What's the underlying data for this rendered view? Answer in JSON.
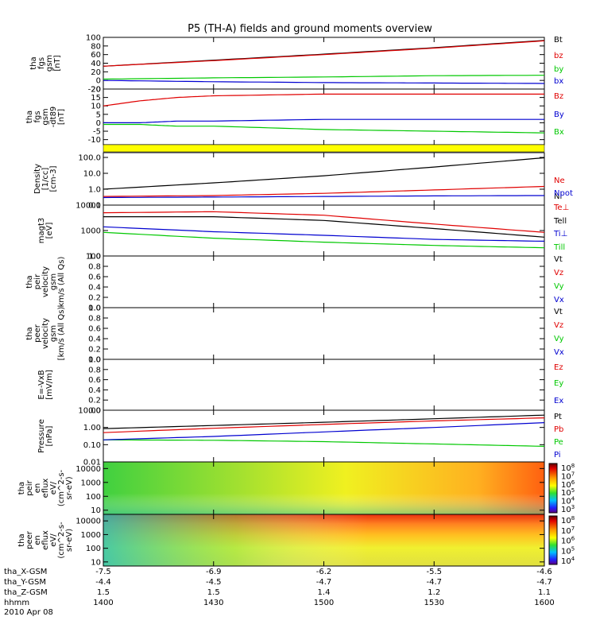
{
  "title": "P5 (TH-A) fields and ground moments overview",
  "colors": {
    "black": "#000000",
    "red": "#e00000",
    "green": "#00c800",
    "blue": "#0000d0",
    "flag_yellow": "#ffff00"
  },
  "footer": {
    "row_labels": [
      "tha_X-GSM",
      "tha_Y-GSM",
      "tha_Z-GSM",
      "hhmm",
      "2010 Apr 08"
    ],
    "columns": [
      {
        "x": "-7.5",
        "y": "-4.4",
        "z": "1.5",
        "t": "1400"
      },
      {
        "x": "-6.9",
        "y": "-4.5",
        "z": "1.5",
        "t": "1430"
      },
      {
        "x": "-6.2",
        "y": "-4.7",
        "z": "1.4",
        "t": "1500"
      },
      {
        "x": "-5.5",
        "y": "-4.7",
        "z": "1.2",
        "t": "1530"
      },
      {
        "x": "-4.6",
        "y": "-4.7",
        "z": "1.1",
        "t": "1600"
      }
    ]
  },
  "chart_data": [
    {
      "type": "line",
      "id": "fgs_gsm",
      "ylabel": [
        "tha",
        "fgs",
        "gsm",
        "[nT]"
      ],
      "ylim": [
        -20,
        100
      ],
      "yscale": "linear",
      "yticks": [
        "100",
        "80",
        "60",
        "40",
        "20",
        "0",
        "-20"
      ],
      "x": [
        0,
        30,
        60,
        90,
        120
      ],
      "series": [
        {
          "name": "Bt",
          "color": "black",
          "values": [
            33,
            47,
            61,
            76,
            93
          ]
        },
        {
          "name": "bz",
          "color": "red",
          "values": [
            33,
            46,
            60,
            75,
            92
          ]
        },
        {
          "name": "by",
          "color": "green",
          "values": [
            3,
            6,
            8,
            11,
            12
          ]
        },
        {
          "name": "bx",
          "color": "blue",
          "values": [
            0,
            -3,
            -5,
            -6,
            -7
          ]
        }
      ]
    },
    {
      "type": "line",
      "id": "fgs_gsm_dt89",
      "ylabel": [
        "tha",
        "fgs",
        "gsm",
        "-dt89",
        "[nT]"
      ],
      "ylim": [
        -13,
        20
      ],
      "yscale": "linear",
      "yticks": [
        "20",
        "15",
        "10",
        "5",
        "0",
        "-5",
        "-10"
      ],
      "x": [
        0,
        10,
        20,
        30,
        60,
        90,
        120
      ],
      "series": [
        {
          "name": "Bz",
          "color": "red",
          "values": [
            10,
            13,
            15,
            16,
            17,
            17,
            17
          ]
        },
        {
          "name": "By",
          "color": "blue",
          "values": [
            0,
            0,
            1,
            1,
            2,
            2,
            2
          ]
        },
        {
          "name": "Bx",
          "color": "green",
          "values": [
            -1,
            -1,
            -2,
            -2,
            -4,
            -5,
            -6
          ]
        }
      ]
    },
    {
      "type": "line",
      "id": "density",
      "ylabel": [
        "Density",
        "[1/cc]",
        "[cm-3]"
      ],
      "ylim": [
        0.1,
        200
      ],
      "yscale": "log",
      "yticks": [
        "100.0",
        "10.0",
        "1.0",
        "0.1"
      ],
      "x": [
        0,
        30,
        60,
        90,
        120
      ],
      "series": [
        {
          "name": "Ne",
          "color": "red",
          "values": [
            0.35,
            0.4,
            0.55,
            0.9,
            1.5
          ]
        },
        {
          "name": "Ni",
          "color": "black",
          "values": [
            1.0,
            2.5,
            7,
            25,
            95
          ]
        },
        {
          "name": "Npot",
          "color": "blue",
          "values": [
            0.3,
            0.32,
            0.35,
            0.38,
            0.4
          ]
        }
      ]
    },
    {
      "type": "line",
      "id": "temperature",
      "ylabel": [
        "magt3",
        "[eV]"
      ],
      "ylim": [
        100,
        10000
      ],
      "yscale": "log",
      "yticks": [
        "10000",
        "1000",
        "100"
      ],
      "x": [
        0,
        30,
        60,
        90,
        120
      ],
      "series": [
        {
          "name": "Te⊥",
          "color": "red",
          "values": [
            5000,
            5500,
            4000,
            1800,
            850
          ]
        },
        {
          "name": "Tell",
          "color": "black",
          "values": [
            3500,
            3500,
            2500,
            1200,
            550
          ]
        },
        {
          "name": "Ti⊥",
          "color": "blue",
          "values": [
            1400,
            900,
            650,
            450,
            380
          ]
        },
        {
          "name": "Till",
          "color": "green",
          "values": [
            850,
            500,
            350,
            260,
            210
          ]
        }
      ]
    },
    {
      "type": "line",
      "id": "peir_velocity",
      "ylabel": [
        "tha",
        "peir",
        "velocity",
        "gsm",
        "km/s (All Qs)"
      ],
      "ylim": [
        0,
        1
      ],
      "yscale": "linear",
      "yticks": [
        "1.0",
        "0.8",
        "0.6",
        "0.4",
        "0.2",
        "0.0"
      ],
      "legend": [
        "Vt",
        "Vz",
        "Vy",
        "Vx"
      ],
      "legend_colors": [
        "black",
        "red",
        "green",
        "blue"
      ]
    },
    {
      "type": "line",
      "id": "peer_velocity",
      "ylabel": [
        "tha",
        "peer",
        "velocity",
        "gsm",
        "[km/s (All Qs)"
      ],
      "ylim": [
        0,
        1
      ],
      "yscale": "linear",
      "yticks": [
        "1.0",
        "0.8",
        "0.6",
        "0.4",
        "0.2",
        "0.0"
      ],
      "legend": [
        "Vt",
        "Vz",
        "Vy",
        "Vx"
      ],
      "legend_colors": [
        "black",
        "red",
        "green",
        "blue"
      ]
    },
    {
      "type": "line",
      "id": "efield",
      "ylabel": [
        "E=-VxB",
        "[mV/m]"
      ],
      "ylim": [
        0,
        1
      ],
      "yscale": "linear",
      "yticks": [
        "1.0",
        "0.8",
        "0.6",
        "0.4",
        "0.2",
        "0.0"
      ],
      "legend": [
        "Ez",
        "Ey",
        "Ex"
      ],
      "legend_colors": [
        "red",
        "green",
        "blue"
      ]
    },
    {
      "type": "line",
      "id": "pressure",
      "ylabel": [
        "Pressure",
        "[nPa]"
      ],
      "ylim": [
        0.01,
        10
      ],
      "yscale": "log",
      "yticks": [
        "10.00",
        "1.00",
        "0.10",
        "0.01"
      ],
      "x": [
        0,
        30,
        60,
        90,
        120
      ],
      "series": [
        {
          "name": "Pt",
          "color": "black",
          "values": [
            0.85,
            1.3,
            2.0,
            3.2,
            5.2
          ]
        },
        {
          "name": "Pb",
          "color": "red",
          "values": [
            0.5,
            0.9,
            1.5,
            2.4,
            3.6
          ]
        },
        {
          "name": "Pe",
          "color": "green",
          "values": [
            0.19,
            0.18,
            0.15,
            0.11,
            0.08
          ]
        },
        {
          "name": "Pi",
          "color": "blue",
          "values": [
            0.19,
            0.3,
            0.55,
            1.0,
            1.9
          ]
        }
      ]
    },
    {
      "type": "heatmap",
      "id": "peir_en_eflux",
      "ylabel": [
        "tha",
        "peir",
        "en",
        "eflux",
        "eV/",
        "(cm^2-s-",
        "sr-eV)"
      ],
      "ylim": [
        5,
        30000
      ],
      "yscale": "log",
      "yticks": [
        "10000",
        "1000",
        "100",
        "10"
      ],
      "colorbar_ticks": [
        "10^8",
        "10^7",
        "10^6",
        "10^5",
        "10^4",
        "10^3"
      ]
    },
    {
      "type": "heatmap",
      "id": "peer_en_eflux",
      "ylabel": [
        "tha",
        "peer",
        "en",
        "eflux",
        "eV/",
        "(cm^2-s-",
        "sr-eV)"
      ],
      "ylim": [
        5,
        30000
      ],
      "yscale": "log",
      "yticks": [
        "10000",
        "1000",
        "100",
        "10"
      ],
      "colorbar_ticks": [
        "10^8",
        "10^7",
        "10^6",
        "10^5",
        "10^4"
      ]
    }
  ]
}
